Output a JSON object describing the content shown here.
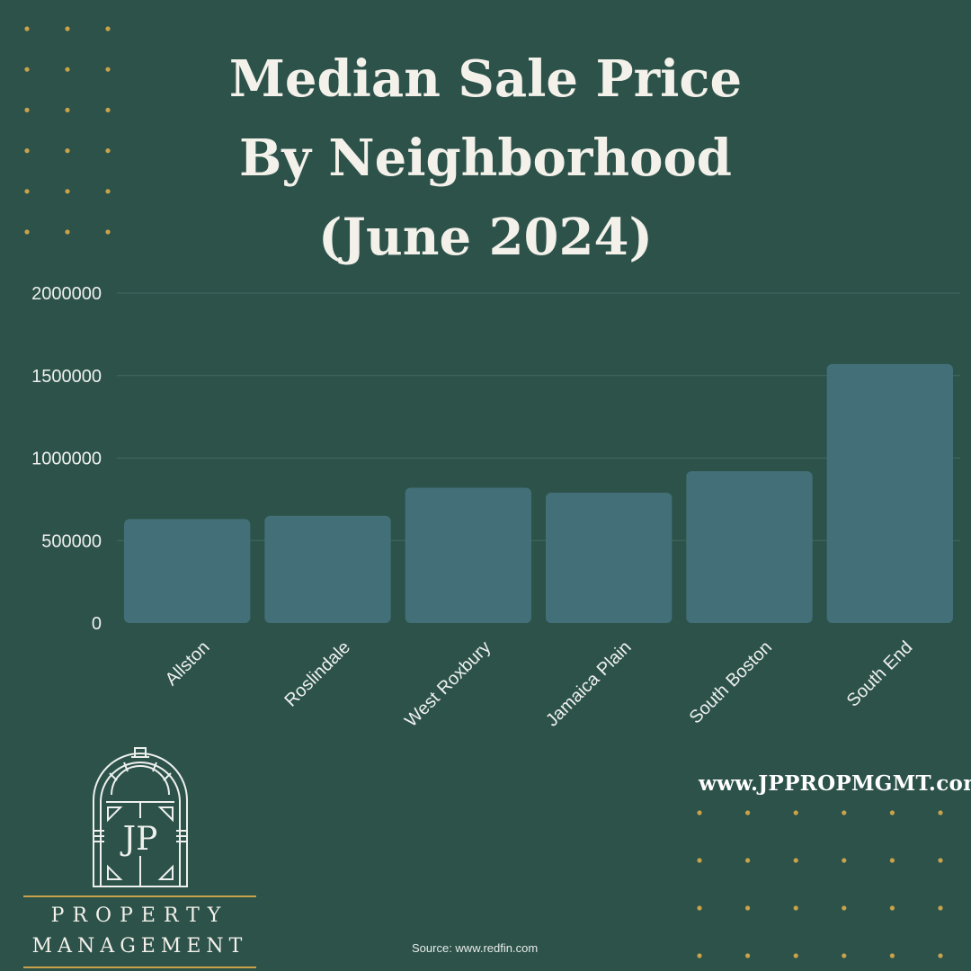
{
  "title_lines": [
    "Median Sale Price",
    "By Neighborhood",
    "(June 2024)"
  ],
  "colors": {
    "background": "#2c524a",
    "bar": "#437078",
    "accent_gold": "#c9a24a",
    "text": "#f3f1ea"
  },
  "chart_data": {
    "type": "bar",
    "categories": [
      "Allston",
      "Roslindale",
      "West Roxbury",
      "Jamaica Plain",
      "South Boston",
      "South End"
    ],
    "values": [
      630000,
      650000,
      820000,
      790000,
      920000,
      1570000
    ],
    "yticks": [
      "0",
      "500000",
      "1000000",
      "1500000",
      "2000000"
    ],
    "ylim": [
      0,
      2000000
    ],
    "grid": true
  },
  "website": "www.JPPROPMGMT.com",
  "source": "Source: www.redfin.com",
  "logo": {
    "monogram": "JP",
    "line1": "PROPERTY",
    "line2": "MANAGEMENT"
  }
}
